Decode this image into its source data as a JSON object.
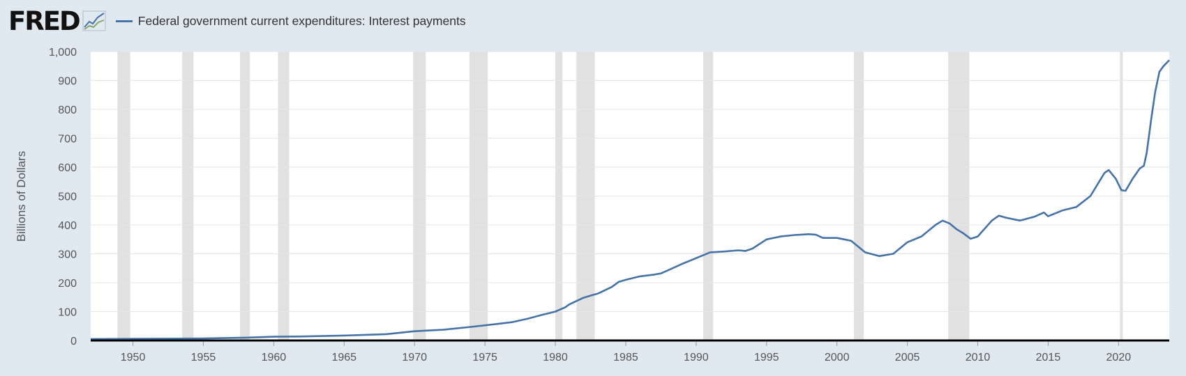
{
  "brand": {
    "logo_text": "FRED",
    "icon": "fred-graph-icon"
  },
  "colors": {
    "series": "#4572a7",
    "recession": "#e1e1e1",
    "background": "#e1e9f0",
    "plot": "#ffffff",
    "grid": "#e6e6e6"
  },
  "chart_data": {
    "type": "line",
    "title": "Federal government current expenditures: Interest payments",
    "ylabel": "Billions of Dollars",
    "xlabel": "",
    "ylim": [
      0,
      1000
    ],
    "xlim": [
      1947,
      2023.6
    ],
    "grid": true,
    "legend": "top-left",
    "yticks": [
      0,
      100,
      200,
      300,
      400,
      500,
      600,
      700,
      800,
      900,
      1000
    ],
    "ytick_labels": [
      "0",
      "100",
      "200",
      "300",
      "400",
      "500",
      "600",
      "700",
      "800",
      "900",
      "1,000"
    ],
    "xticks": [
      1950,
      1955,
      1960,
      1965,
      1970,
      1975,
      1980,
      1985,
      1990,
      1995,
      2000,
      2005,
      2010,
      2015,
      2020
    ],
    "xtick_labels": [
      "1950",
      "1955",
      "1960",
      "1965",
      "1970",
      "1975",
      "1980",
      "1985",
      "1990",
      "1995",
      "2000",
      "2005",
      "2010",
      "2015",
      "2020"
    ],
    "recessions": [
      [
        1948.9,
        1949.8
      ],
      [
        1953.5,
        1954.3
      ],
      [
        1957.6,
        1958.3
      ],
      [
        1960.3,
        1961.1
      ],
      [
        1969.9,
        1970.8
      ],
      [
        1973.9,
        1975.2
      ],
      [
        1980.0,
        1980.5
      ],
      [
        1981.5,
        1982.8
      ],
      [
        1990.5,
        1991.2
      ],
      [
        2001.2,
        2001.9
      ],
      [
        2007.9,
        2009.4
      ],
      [
        2020.1,
        2020.3
      ]
    ],
    "series": [
      {
        "name": "Federal government current expenditures: Interest payments",
        "x": [
          1947,
          1950,
          1955,
          1958,
          1960,
          1962,
          1965,
          1968,
          1970,
          1972,
          1974,
          1976,
          1977,
          1978,
          1979,
          1980,
          1980.7,
          1981,
          1982,
          1982.7,
          1983,
          1984,
          1984.5,
          1985,
          1986,
          1987,
          1987.5,
          1988,
          1989,
          1990,
          1991,
          1992,
          1993,
          1993.5,
          1994,
          1995,
          1996,
          1997,
          1998,
          1998.5,
          1999,
          2000,
          2001,
          2002,
          2003,
          2004,
          2005,
          2006,
          2007,
          2007.5,
          2008,
          2008.5,
          2009,
          2009.5,
          2010,
          2011,
          2011.5,
          2012,
          2013,
          2014,
          2014.7,
          2015,
          2016,
          2017,
          2018,
          2019,
          2019.3,
          2019.8,
          2020.2,
          2020.5,
          2021,
          2021.5,
          2021.8,
          2022,
          2022.3,
          2022.6,
          2022.9,
          2023.2,
          2023.6
        ],
        "y": [
          5,
          6,
          7,
          10,
          13,
          14,
          17,
          22,
          32,
          37,
          47,
          58,
          64,
          75,
          88,
          100,
          115,
          125,
          148,
          158,
          162,
          185,
          203,
          210,
          222,
          228,
          232,
          243,
          265,
          285,
          305,
          308,
          312,
          310,
          318,
          350,
          360,
          365,
          368,
          366,
          355,
          355,
          345,
          305,
          292,
          300,
          340,
          360,
          400,
          415,
          405,
          385,
          370,
          352,
          360,
          415,
          432,
          425,
          415,
          428,
          443,
          430,
          450,
          462,
          500,
          580,
          590,
          560,
          520,
          518,
          560,
          595,
          605,
          650,
          760,
          860,
          930,
          950,
          970
        ]
      }
    ]
  }
}
